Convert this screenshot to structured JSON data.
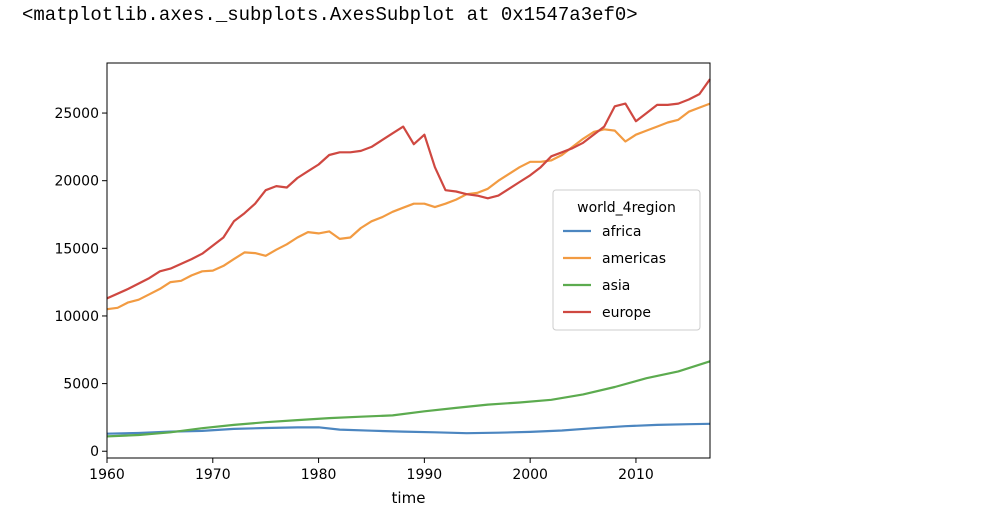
{
  "output_repr": "<matplotlib.axes._subplots.AxesSubplot at 0x1547a3ef0>",
  "chart_data": {
    "type": "line",
    "title": "",
    "xlabel": "time",
    "ylabel": "",
    "xlim": [
      1960,
      2017
    ],
    "ylim": [
      -500,
      28700
    ],
    "xticks": [
      1960,
      1970,
      1980,
      1990,
      2000,
      2010
    ],
    "yticks": [
      0,
      5000,
      10000,
      15000,
      20000,
      25000
    ],
    "grid": false,
    "legend": {
      "title": "world_4region",
      "placement": "center-right"
    },
    "series": [
      {
        "name": "africa",
        "color": "#4c86c0",
        "points": [
          [
            1960,
            1300
          ],
          [
            1963,
            1350
          ],
          [
            1966,
            1450
          ],
          [
            1969,
            1500
          ],
          [
            1972,
            1650
          ],
          [
            1975,
            1720
          ],
          [
            1978,
            1760
          ],
          [
            1980,
            1770
          ],
          [
            1982,
            1600
          ],
          [
            1985,
            1520
          ],
          [
            1988,
            1450
          ],
          [
            1991,
            1400
          ],
          [
            1994,
            1330
          ],
          [
            1997,
            1370
          ],
          [
            2000,
            1430
          ],
          [
            2003,
            1530
          ],
          [
            2006,
            1700
          ],
          [
            2009,
            1850
          ],
          [
            2012,
            1950
          ],
          [
            2015,
            2000
          ],
          [
            2017,
            2030
          ]
        ]
      },
      {
        "name": "americas",
        "color": "#f29b42",
        "points": [
          [
            1960,
            10500
          ],
          [
            1961,
            10600
          ],
          [
            1962,
            11000
          ],
          [
            1963,
            11200
          ],
          [
            1964,
            11600
          ],
          [
            1965,
            12000
          ],
          [
            1966,
            12500
          ],
          [
            1967,
            12600
          ],
          [
            1968,
            13000
          ],
          [
            1969,
            13300
          ],
          [
            1970,
            13350
          ],
          [
            1971,
            13700
          ],
          [
            1972,
            14200
          ],
          [
            1973,
            14700
          ],
          [
            1974,
            14650
          ],
          [
            1975,
            14450
          ],
          [
            1976,
            14900
          ],
          [
            1977,
            15300
          ],
          [
            1978,
            15800
          ],
          [
            1979,
            16200
          ],
          [
            1980,
            16100
          ],
          [
            1981,
            16250
          ],
          [
            1982,
            15700
          ],
          [
            1983,
            15800
          ],
          [
            1984,
            16500
          ],
          [
            1985,
            17000
          ],
          [
            1986,
            17300
          ],
          [
            1987,
            17700
          ],
          [
            1988,
            18000
          ],
          [
            1989,
            18300
          ],
          [
            1990,
            18300
          ],
          [
            1991,
            18050
          ],
          [
            1992,
            18300
          ],
          [
            1993,
            18600
          ],
          [
            1994,
            19000
          ],
          [
            1995,
            19100
          ],
          [
            1996,
            19400
          ],
          [
            1997,
            20000
          ],
          [
            1998,
            20500
          ],
          [
            1999,
            21000
          ],
          [
            2000,
            21400
          ],
          [
            2001,
            21400
          ],
          [
            2002,
            21500
          ],
          [
            2003,
            21900
          ],
          [
            2004,
            22500
          ],
          [
            2005,
            23100
          ],
          [
            2006,
            23600
          ],
          [
            2007,
            23800
          ],
          [
            2008,
            23700
          ],
          [
            2009,
            22900
          ],
          [
            2010,
            23400
          ],
          [
            2011,
            23700
          ],
          [
            2012,
            24000
          ],
          [
            2013,
            24300
          ],
          [
            2014,
            24500
          ],
          [
            2015,
            25100
          ],
          [
            2016,
            25400
          ],
          [
            2017,
            25700
          ]
        ]
      },
      {
        "name": "asia",
        "color": "#5cab4f",
        "points": [
          [
            1960,
            1100
          ],
          [
            1963,
            1200
          ],
          [
            1966,
            1400
          ],
          [
            1969,
            1700
          ],
          [
            1972,
            1950
          ],
          [
            1975,
            2150
          ],
          [
            1978,
            2300
          ],
          [
            1981,
            2450
          ],
          [
            1984,
            2550
          ],
          [
            1987,
            2650
          ],
          [
            1990,
            2950
          ],
          [
            1993,
            3200
          ],
          [
            1996,
            3450
          ],
          [
            1999,
            3600
          ],
          [
            2002,
            3800
          ],
          [
            2005,
            4200
          ],
          [
            2008,
            4750
          ],
          [
            2011,
            5400
          ],
          [
            2014,
            5900
          ],
          [
            2017,
            6650
          ]
        ]
      },
      {
        "name": "europe",
        "color": "#cf4841",
        "points": [
          [
            1960,
            11300
          ],
          [
            1962,
            12000
          ],
          [
            1964,
            12800
          ],
          [
            1965,
            13300
          ],
          [
            1966,
            13500
          ],
          [
            1968,
            14200
          ],
          [
            1969,
            14600
          ],
          [
            1970,
            15200
          ],
          [
            1971,
            15800
          ],
          [
            1972,
            17000
          ],
          [
            1973,
            17600
          ],
          [
            1974,
            18300
          ],
          [
            1975,
            19300
          ],
          [
            1976,
            19600
          ],
          [
            1977,
            19500
          ],
          [
            1978,
            20200
          ],
          [
            1979,
            20700
          ],
          [
            1980,
            21200
          ],
          [
            1981,
            21900
          ],
          [
            1982,
            22100
          ],
          [
            1983,
            22100
          ],
          [
            1984,
            22200
          ],
          [
            1985,
            22500
          ],
          [
            1986,
            23000
          ],
          [
            1987,
            23500
          ],
          [
            1988,
            24000
          ],
          [
            1989,
            22700
          ],
          [
            1990,
            23400
          ],
          [
            1991,
            21000
          ],
          [
            1992,
            19300
          ],
          [
            1993,
            19200
          ],
          [
            1994,
            19000
          ],
          [
            1995,
            18900
          ],
          [
            1996,
            18700
          ],
          [
            1997,
            18900
          ],
          [
            1998,
            19400
          ],
          [
            1999,
            19900
          ],
          [
            2000,
            20400
          ],
          [
            2001,
            21000
          ],
          [
            2002,
            21800
          ],
          [
            2003,
            22100
          ],
          [
            2004,
            22400
          ],
          [
            2005,
            22800
          ],
          [
            2006,
            23400
          ],
          [
            2007,
            24000
          ],
          [
            2008,
            25500
          ],
          [
            2009,
            25700
          ],
          [
            2010,
            24400
          ],
          [
            2011,
            25000
          ],
          [
            2012,
            25600
          ],
          [
            2013,
            25600
          ],
          [
            2014,
            25700
          ],
          [
            2015,
            26000
          ],
          [
            2016,
            26400
          ],
          [
            2017,
            27500
          ]
        ]
      }
    ]
  }
}
